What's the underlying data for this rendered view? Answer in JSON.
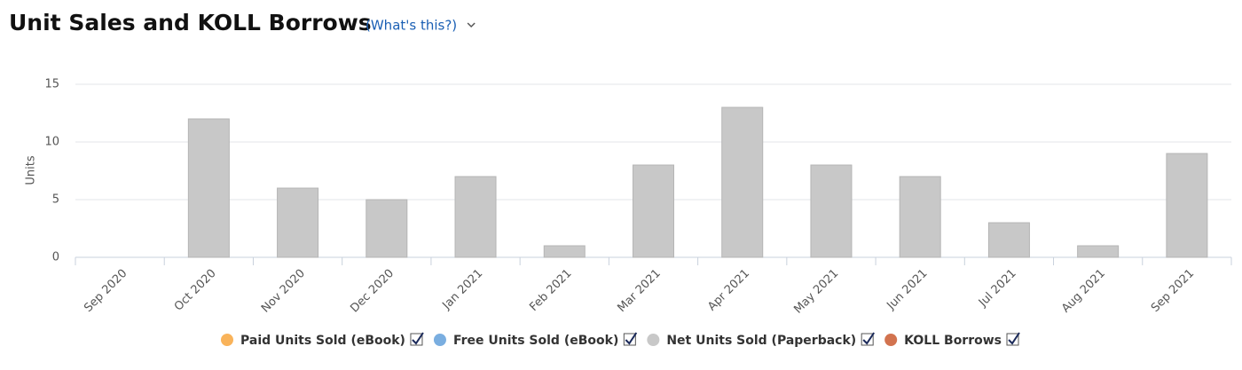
{
  "chart_data": {
    "type": "bar",
    "stacked": true,
    "title": "Unit Sales and KOLL Borrows",
    "help_link": "(What's this?)",
    "y_label": "Units",
    "categories": [
      "Sep 2020",
      "Oct 2020",
      "Nov 2020",
      "Dec 2020",
      "Jan 2021",
      "Feb 2021",
      "Mar 2021",
      "Apr 2021",
      "May 2021",
      "Jun 2021",
      "Jul 2021",
      "Aug 2021",
      "Sep 2021"
    ],
    "series": [
      {
        "name": "Paid Units Sold (eBook)",
        "color": "#f9b35a",
        "values": [
          0,
          0,
          0,
          0,
          0,
          0,
          0,
          0,
          0,
          0,
          0,
          0,
          0
        ]
      },
      {
        "name": "Free Units Sold (eBook)",
        "color": "#7aaee0",
        "values": [
          0,
          0,
          0,
          0,
          0,
          0,
          0,
          0,
          0,
          0,
          0,
          0,
          0
        ]
      },
      {
        "name": "Net Units Sold (Paperback)",
        "color": "#c8c8c8",
        "values": [
          0,
          12,
          6,
          5,
          7,
          1,
          8,
          13,
          8,
          7,
          3,
          1,
          9
        ]
      },
      {
        "name": "KOLL Borrows",
        "color": "#d2734f",
        "values": [
          0,
          0,
          0,
          0,
          0,
          0,
          0,
          0,
          0,
          0,
          0,
          0,
          0
        ]
      }
    ],
    "ylim": [
      0,
      15
    ],
    "yticks": [
      0,
      5,
      10,
      15
    ],
    "grid": true
  }
}
